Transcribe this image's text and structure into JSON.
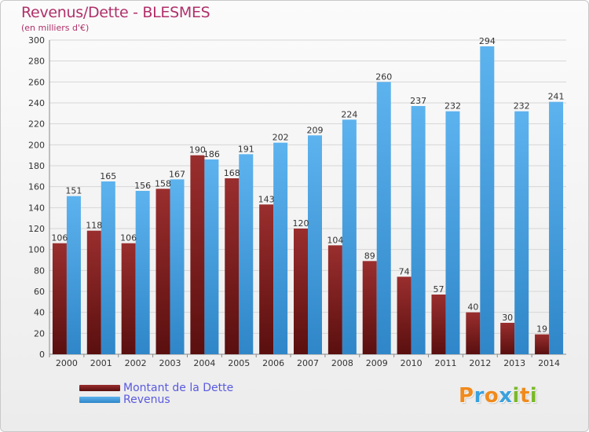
{
  "header": {
    "title": "Revenus/Dette - BLESMES",
    "subtitle": "(en milliers d'€)"
  },
  "legend": {
    "dette_label": "Montant de la Dette",
    "revenus_label": "Revenus"
  },
  "logo": {
    "text": "Proxiti",
    "letters": [
      {
        "ch": "P",
        "color": "#f08a1c"
      },
      {
        "ch": "r",
        "color": "#3aa1dd"
      },
      {
        "ch": "o",
        "color": "#f08a1c"
      },
      {
        "ch": "x",
        "color": "#3aa1dd"
      },
      {
        "ch": "i",
        "color": "#7ab929"
      },
      {
        "ch": "t",
        "color": "#f08a1c"
      },
      {
        "ch": "i",
        "color": "#7ab929"
      }
    ]
  },
  "colors": {
    "dette": "#7a1a1a",
    "revenus": "#3e9be0",
    "title": "#b0306a",
    "legend_text": "#5a5ae0"
  },
  "chart_data": {
    "type": "bar",
    "title": "Revenus/Dette - BLESMES",
    "subtitle": "(en milliers d'€)",
    "categories": [
      "2000",
      "2001",
      "2002",
      "2003",
      "2004",
      "2005",
      "2006",
      "2007",
      "2008",
      "2009",
      "2010",
      "2011",
      "2012",
      "2013",
      "2014"
    ],
    "series": [
      {
        "name": "Montant de la Dette",
        "color": "#7a1a1a",
        "values": [
          106,
          118,
          106,
          158,
          190,
          168,
          143,
          120,
          104,
          89,
          74,
          57,
          40,
          30,
          19
        ]
      },
      {
        "name": "Revenus",
        "color": "#3e9be0",
        "values": [
          151,
          165,
          156,
          167,
          186,
          191,
          202,
          209,
          224,
          260,
          237,
          232,
          294,
          232,
          241
        ]
      }
    ],
    "ylim": [
      0,
      300
    ],
    "yticks": [
      0,
      20,
      40,
      60,
      80,
      100,
      120,
      140,
      160,
      180,
      200,
      220,
      240,
      260,
      280,
      300
    ],
    "grid": true,
    "legend_position": "bottom-left"
  }
}
